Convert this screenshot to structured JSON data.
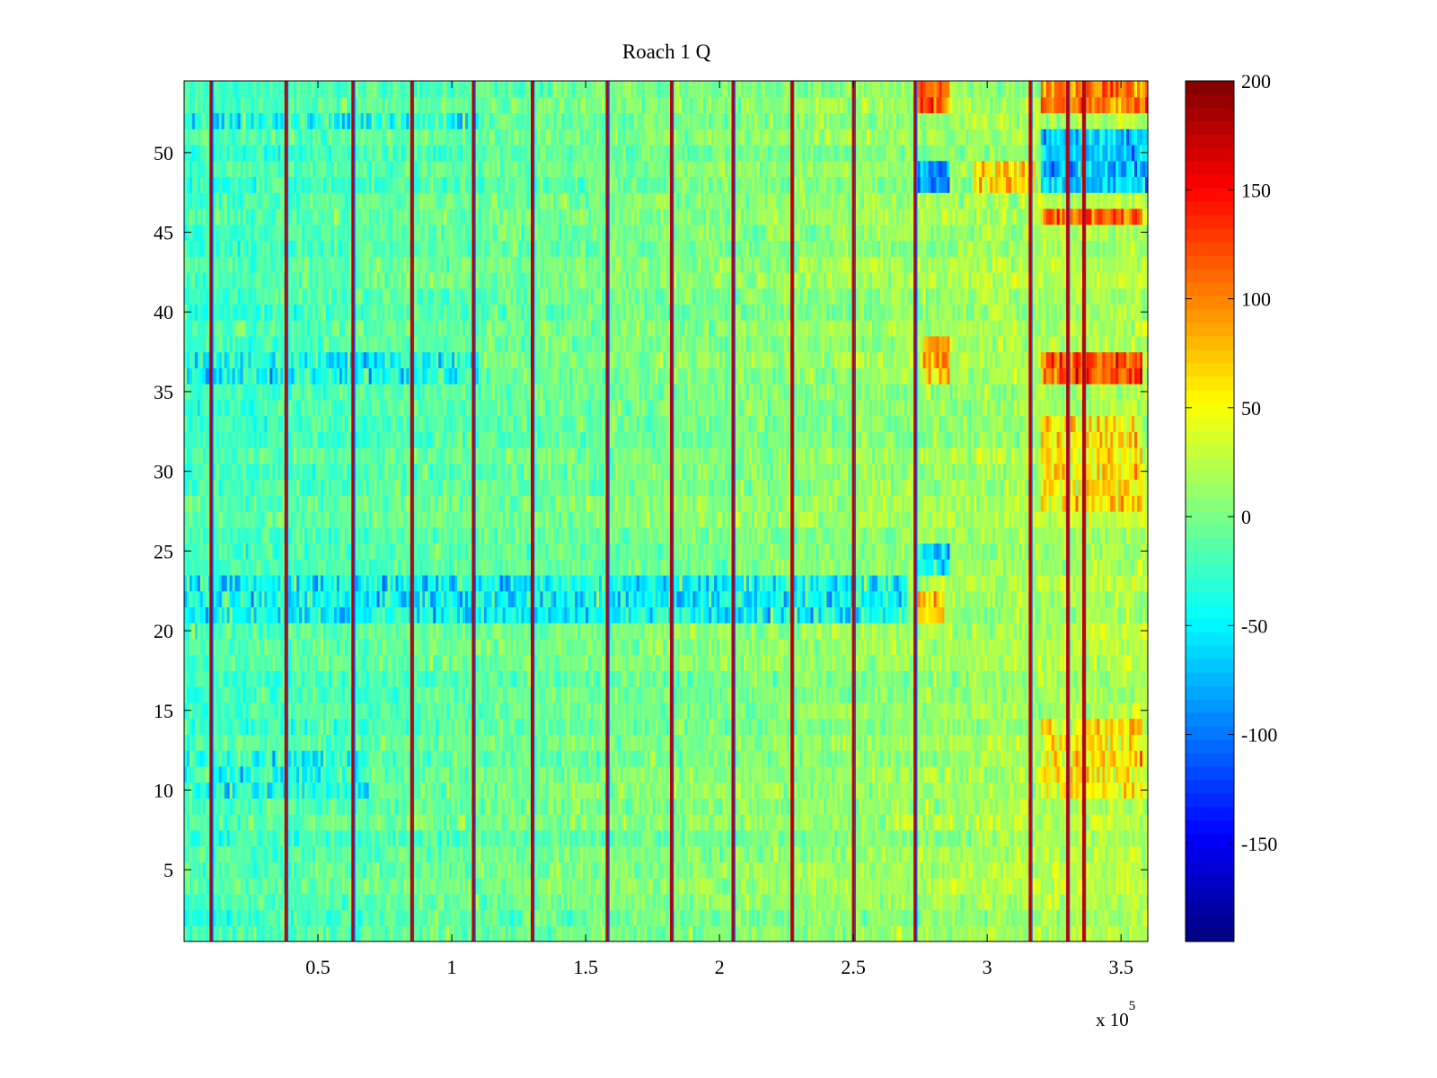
{
  "chart_data": {
    "type": "heatmap",
    "title": "Roach 1 Q",
    "xlabel": "",
    "ylabel": "",
    "x_exponent_label": "x 10",
    "x_exponent_power": "5",
    "xlim": [
      0,
      3.6
    ],
    "ylim": [
      0.5,
      54.5
    ],
    "xticks": [
      0.5,
      1,
      1.5,
      2,
      2.5,
      3,
      3.5
    ],
    "xtick_labels": [
      "0.5",
      "1",
      "1.5",
      "2",
      "2.5",
      "3",
      "3.5"
    ],
    "yticks": [
      5,
      10,
      15,
      20,
      25,
      30,
      35,
      40,
      45,
      50
    ],
    "ytick_labels": [
      "5",
      "10",
      "15",
      "20",
      "25",
      "30",
      "35",
      "40",
      "45",
      "50"
    ],
    "colorbar": {
      "colormap": "jet",
      "clim": [
        -195,
        200
      ],
      "ticks": [
        200,
        150,
        100,
        50,
        0,
        -50,
        -100,
        -150
      ],
      "tick_labels": [
        "200",
        "150",
        "100",
        "50",
        "0",
        "-50",
        "-100",
        "-150"
      ]
    },
    "rows": 54,
    "spike_columns_x": [
      0.1,
      0.38,
      0.63,
      0.85,
      1.08,
      1.3,
      1.58,
      1.82,
      2.05,
      2.27,
      2.5,
      2.73,
      3.16,
      3.3,
      3.36
    ],
    "hot_regions": [
      {
        "x": [
          2.74,
          2.86
        ],
        "rows": [
          53,
          54
        ],
        "value": 150
      },
      {
        "x": [
          3.2,
          3.6
        ],
        "rows": [
          53,
          54
        ],
        "value": 140
      },
      {
        "x": [
          3.2,
          3.58
        ],
        "rows": [
          46,
          46
        ],
        "value": 150
      },
      {
        "x": [
          3.2,
          3.58
        ],
        "rows": [
          36,
          37
        ],
        "value": 160
      },
      {
        "x": [
          2.76,
          2.86
        ],
        "rows": [
          36,
          38
        ],
        "value": 110
      },
      {
        "x": [
          3.2,
          3.58
        ],
        "rows": [
          28,
          33
        ],
        "value": 80
      },
      {
        "x": [
          3.2,
          3.58
        ],
        "rows": [
          10,
          14
        ],
        "value": 75
      },
      {
        "x": [
          2.95,
          3.18
        ],
        "rows": [
          48,
          49
        ],
        "value": 90
      },
      {
        "x": [
          2.74,
          2.84
        ],
        "rows": [
          21,
          22
        ],
        "value": 90
      }
    ],
    "cold_regions": [
      {
        "x": [
          2.74,
          2.86
        ],
        "rows": [
          48,
          49
        ],
        "value": -110
      },
      {
        "x": [
          3.2,
          3.6
        ],
        "rows": [
          48,
          51
        ],
        "value": -95
      },
      {
        "x": [
          2.74,
          2.86
        ],
        "rows": [
          24,
          25
        ],
        "value": -80
      },
      {
        "x": [
          0.0,
          2.7
        ],
        "rows": [
          21,
          23
        ],
        "value": -60
      },
      {
        "x": [
          0.0,
          1.1
        ],
        "rows": [
          36,
          37
        ],
        "value": -55
      },
      {
        "x": [
          0.0,
          1.1
        ],
        "rows": [
          52,
          52
        ],
        "value": -50
      },
      {
        "x": [
          0.0,
          0.7
        ],
        "rows": [
          10,
          12
        ],
        "value": -45
      }
    ]
  }
}
